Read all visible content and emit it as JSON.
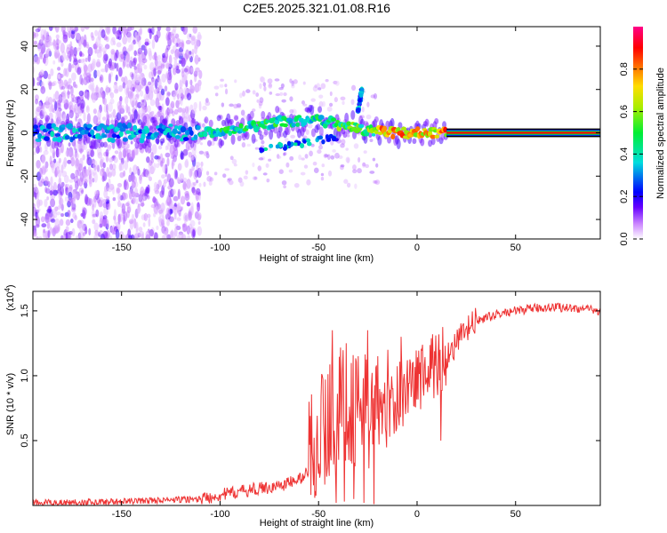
{
  "title": "C2E5.2025.321.01.08.R16",
  "chart_data": [
    {
      "type": "heatmap",
      "name": "spectrogram",
      "xlabel": "Height of straight line (km)",
      "ylabel": "Frequency (Hz)",
      "xlim": [
        -195,
        93
      ],
      "ylim": [
        -49,
        49
      ],
      "xticks": [
        -150,
        -100,
        -50,
        0,
        50
      ],
      "yticks": [
        -40,
        -20,
        0,
        20,
        40
      ],
      "colorbar": {
        "label": "Normalized spectral amplitude",
        "range": [
          0,
          1
        ],
        "ticks": [
          "0.0",
          "0.2",
          "0.4",
          "0.6",
          "0.8"
        ]
      },
      "ridge": [
        {
          "x": -195,
          "f": 0
        },
        {
          "x": -150,
          "f": 0
        },
        {
          "x": -110,
          "f": 0
        },
        {
          "x": -90,
          "f": 2
        },
        {
          "x": -70,
          "f": 5
        },
        {
          "x": -50,
          "f": 6
        },
        {
          "x": -35,
          "f": 3
        },
        {
          "x": -25,
          "f": 1
        },
        {
          "x": -10,
          "f": 0
        },
        {
          "x": 15,
          "f": 0
        },
        {
          "x": 93,
          "f": 0
        }
      ],
      "branches": [
        {
          "x": [
            -30,
            -28
          ],
          "f": [
            10,
            20
          ]
        },
        {
          "x": [
            -80,
            -40
          ],
          "f": [
            -8,
            -2
          ]
        }
      ]
    },
    {
      "type": "line",
      "name": "snr",
      "xlabel": "Height of straight line (km)",
      "ylabel": "SNR (10 * v/v)",
      "scale_label": "(x10",
      "scale_exp": "4",
      "scale_close": ")",
      "xlim": [
        -195,
        93
      ],
      "ylim": [
        0,
        1.65
      ],
      "xticks": [
        -150,
        -100,
        -50,
        0,
        50
      ],
      "yticks": [
        0.5,
        1.0,
        1.5
      ],
      "ytick_labels": [
        "0.5",
        "1.0",
        "1.5"
      ],
      "color": "#ee3333",
      "envelope": [
        {
          "x": -195,
          "y": 0.02
        },
        {
          "x": -150,
          "y": 0.03
        },
        {
          "x": -110,
          "y": 0.05
        },
        {
          "x": -100,
          "y": 0.08
        },
        {
          "x": -85,
          "y": 0.12
        },
        {
          "x": -70,
          "y": 0.15
        },
        {
          "x": -60,
          "y": 0.2
        },
        {
          "x": -52,
          "y": 0.3
        },
        {
          "x": -45,
          "y": 0.45
        },
        {
          "x": -40,
          "y": 0.55
        },
        {
          "x": -35,
          "y": 0.6
        },
        {
          "x": -30,
          "y": 0.55
        },
        {
          "x": -25,
          "y": 0.5
        },
        {
          "x": -20,
          "y": 0.6
        },
        {
          "x": -15,
          "y": 0.7
        },
        {
          "x": -10,
          "y": 0.8
        },
        {
          "x": -5,
          "y": 0.9
        },
        {
          "x": 0,
          "y": 0.95
        },
        {
          "x": 5,
          "y": 1.0
        },
        {
          "x": 10,
          "y": 1.05
        },
        {
          "x": 15,
          "y": 1.15
        },
        {
          "x": 20,
          "y": 1.25
        },
        {
          "x": 25,
          "y": 1.35
        },
        {
          "x": 30,
          "y": 1.42
        },
        {
          "x": 40,
          "y": 1.47
        },
        {
          "x": 50,
          "y": 1.5
        },
        {
          "x": 60,
          "y": 1.52
        },
        {
          "x": 70,
          "y": 1.53
        },
        {
          "x": 80,
          "y": 1.52
        },
        {
          "x": 93,
          "y": 1.5
        }
      ],
      "peaks": [
        {
          "x": -48,
          "y": 1.0
        },
        {
          "x": -43,
          "y": 1.35
        },
        {
          "x": -36,
          "y": 1.25
        },
        {
          "x": -30,
          "y": 1.15
        },
        {
          "x": -25,
          "y": 1.35
        },
        {
          "x": -20,
          "y": 1.15
        },
        {
          "x": -15,
          "y": 1.2
        },
        {
          "x": -8,
          "y": 1.3
        },
        {
          "x": 8,
          "y": 1.32
        }
      ],
      "dips": [
        {
          "x": -41,
          "y": 0.02
        },
        {
          "x": -37,
          "y": 0.03
        },
        {
          "x": -32,
          "y": 0.05
        },
        {
          "x": -27,
          "y": 0.02
        },
        {
          "x": -22,
          "y": 0.01
        },
        {
          "x": 12,
          "y": 0.5
        }
      ]
    }
  ]
}
